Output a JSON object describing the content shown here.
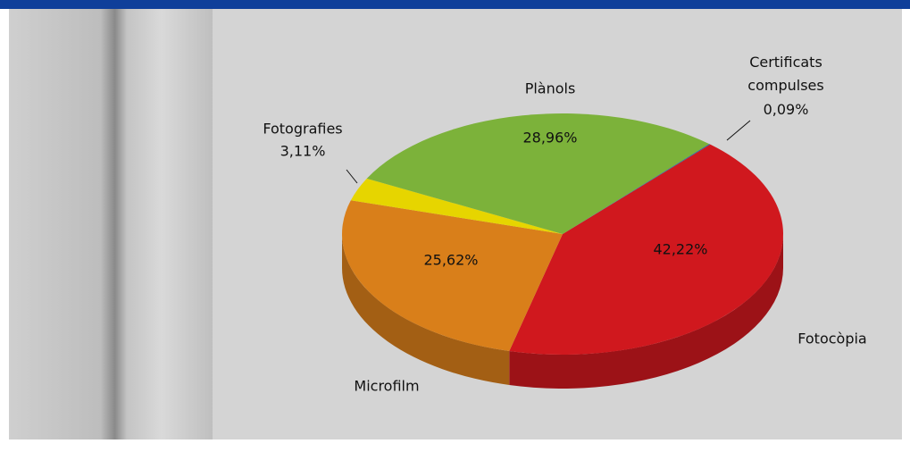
{
  "chart_data": {
    "type": "pie",
    "categories": [
      "Fotocòpia",
      "Microfilm",
      "Fotografies",
      "Plànols",
      "Certificats compulses"
    ],
    "values": [
      42.22,
      25.62,
      3.11,
      28.96,
      0.09
    ],
    "value_labels": [
      "42,22%",
      "25,62%",
      "3,11%",
      "28,96%",
      "0,09%"
    ],
    "colors": [
      "#d0181e",
      "#d97f1a",
      "#e6d500",
      "#7cb23a",
      "#2a6aa0"
    ]
  }
}
